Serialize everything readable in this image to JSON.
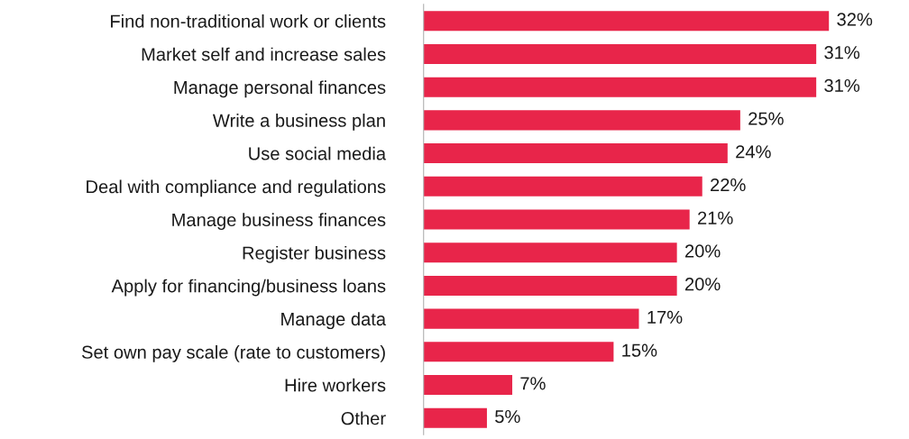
{
  "chart_data": {
    "type": "bar",
    "orientation": "horizontal",
    "categories": [
      "Find non-traditional work or clients",
      "Market self and increase sales",
      "Manage personal finances",
      "Write a business plan",
      "Use social media",
      "Deal with compliance and regulations",
      "Manage business finances",
      "Register business",
      "Apply for financing/business loans",
      "Manage data",
      "Set own pay scale (rate to customers)",
      "Hire workers",
      "Other"
    ],
    "values": [
      32,
      31,
      31,
      25,
      24,
      22,
      21,
      20,
      20,
      17,
      15,
      7,
      5
    ],
    "value_labels": [
      "32%",
      "31%",
      "31%",
      "25%",
      "24%",
      "22%",
      "21%",
      "20%",
      "20%",
      "17%",
      "15%",
      "7%",
      "5%"
    ],
    "color": "#e8254a",
    "grid": false,
    "tick_labels": "y"
  }
}
